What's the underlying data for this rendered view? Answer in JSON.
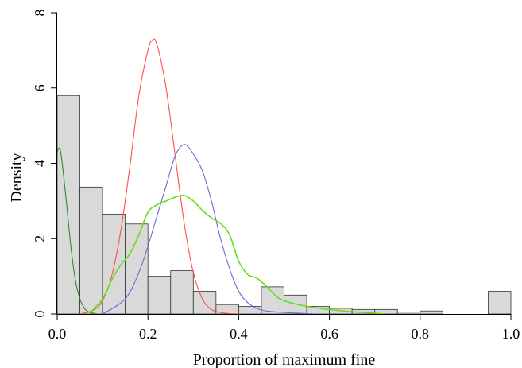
{
  "chart_data": {
    "type": "bar",
    "title": "",
    "xlabel": "Proportion of maximum fine",
    "ylabel": "Density",
    "xlim": [
      0,
      1
    ],
    "ylim": [
      0,
      8
    ],
    "x_ticks": [
      "0.0",
      "0.2",
      "0.4",
      "0.6",
      "0.8",
      "1.0"
    ],
    "y_ticks": [
      "0",
      "2",
      "4",
      "6",
      "8"
    ],
    "grid": false,
    "legend": "none",
    "histogram": {
      "bin_width": 0.05,
      "bin_starts": [
        0.0,
        0.05,
        0.1,
        0.15,
        0.2,
        0.25,
        0.3,
        0.35,
        0.4,
        0.45,
        0.5,
        0.55,
        0.6,
        0.65,
        0.7,
        0.75,
        0.8,
        0.85,
        0.9,
        0.95
      ],
      "values": [
        5.8,
        3.37,
        2.65,
        2.39,
        1.0,
        1.15,
        0.6,
        0.25,
        0.2,
        0.72,
        0.5,
        0.2,
        0.15,
        0.12,
        0.12,
        0.05,
        0.08,
        0.0,
        0.0,
        0.6
      ],
      "fill": "#d9d9d9",
      "stroke": "#333333"
    },
    "series": [
      {
        "type": "line",
        "color": "#2e8b2e",
        "x": [
          0.0,
          0.005,
          0.01,
          0.02,
          0.03,
          0.04,
          0.05,
          0.06,
          0.07,
          0.08,
          0.09,
          0.1
        ],
        "y": [
          4.3,
          4.4,
          4.1,
          3.0,
          1.8,
          0.9,
          0.4,
          0.15,
          0.05,
          0.02,
          0.0,
          0.0
        ]
      },
      {
        "type": "line",
        "color": "#ff4d4d",
        "x": [
          0.05,
          0.08,
          0.1,
          0.12,
          0.14,
          0.16,
          0.18,
          0.2,
          0.21,
          0.22,
          0.24,
          0.26,
          0.28,
          0.3,
          0.32,
          0.34,
          0.36,
          0.38,
          0.4
        ],
        "y": [
          0.0,
          0.1,
          0.35,
          1.0,
          2.2,
          3.9,
          5.8,
          7.0,
          7.27,
          7.15,
          6.0,
          4.2,
          2.4,
          1.1,
          0.4,
          0.12,
          0.04,
          0.01,
          0.0
        ],
        "peak_x": 0.21,
        "peak_y": 7.27
      },
      {
        "type": "line",
        "color": "#6b6bd6",
        "x": [
          0.1,
          0.15,
          0.18,
          0.2,
          0.22,
          0.24,
          0.26,
          0.28,
          0.3,
          0.32,
          0.34,
          0.36,
          0.38,
          0.4,
          0.42,
          0.44,
          0.46,
          0.5,
          0.55,
          0.58
        ],
        "y": [
          0.0,
          0.4,
          1.1,
          1.8,
          2.6,
          3.4,
          4.2,
          4.5,
          4.25,
          3.8,
          3.0,
          2.0,
          1.2,
          0.6,
          0.3,
          0.15,
          0.08,
          0.04,
          0.01,
          0.0
        ],
        "peak_x": 0.28,
        "peak_y": 4.47
      },
      {
        "type": "line",
        "color": "#66dd1a",
        "x": [
          0.07,
          0.1,
          0.12,
          0.14,
          0.16,
          0.18,
          0.2,
          0.22,
          0.24,
          0.26,
          0.28,
          0.3,
          0.32,
          0.34,
          0.36,
          0.38,
          0.4,
          0.42,
          0.44,
          0.46,
          0.48,
          0.5,
          0.55,
          0.6,
          0.65,
          0.7,
          0.72
        ],
        "y": [
          0.0,
          0.4,
          0.9,
          1.3,
          1.6,
          2.1,
          2.7,
          2.9,
          3.0,
          3.1,
          3.15,
          3.0,
          2.75,
          2.55,
          2.4,
          2.1,
          1.4,
          1.05,
          0.95,
          0.75,
          0.5,
          0.35,
          0.2,
          0.12,
          0.06,
          0.02,
          0.0
        ],
        "peak_x": 0.28,
        "peak_y": 3.15
      }
    ]
  }
}
